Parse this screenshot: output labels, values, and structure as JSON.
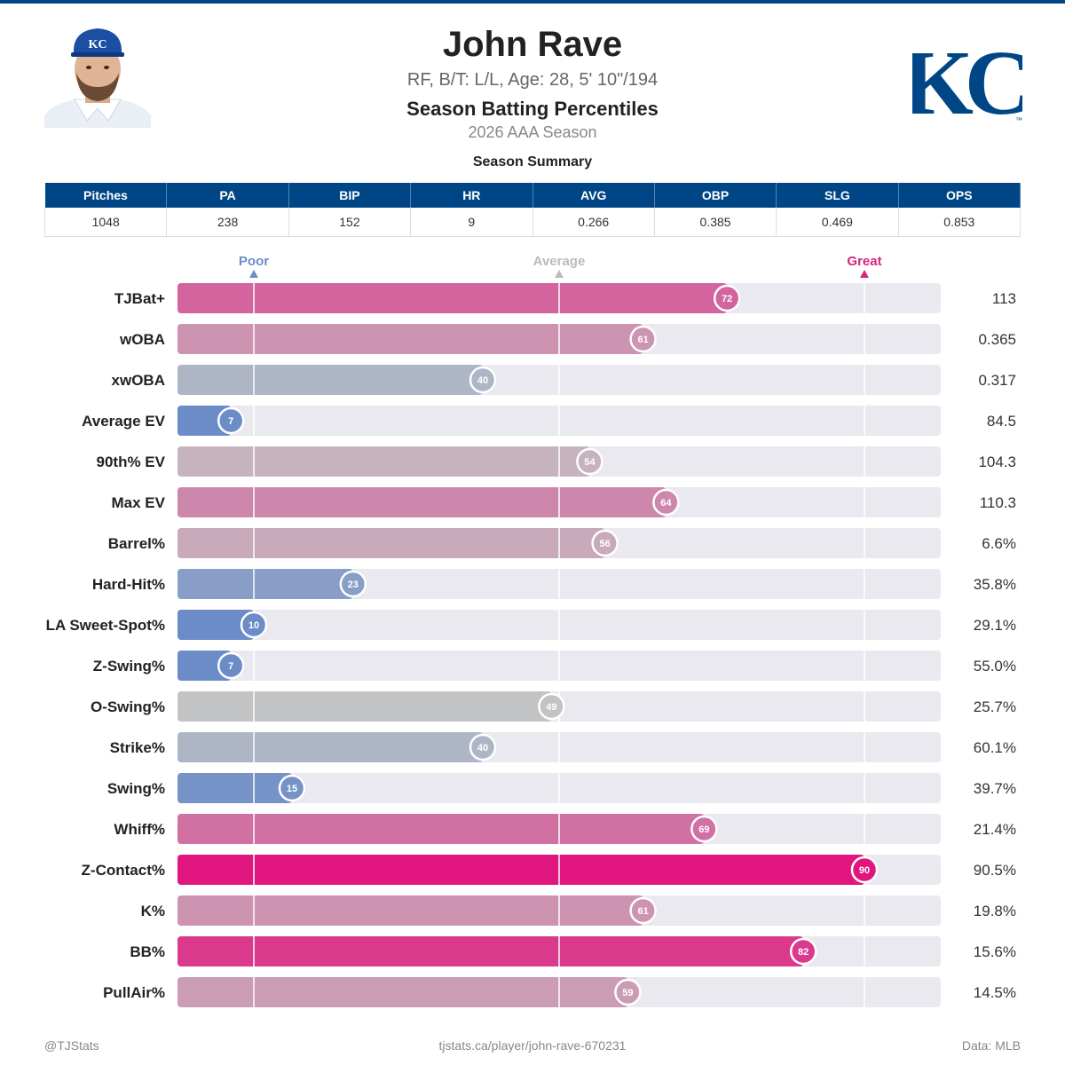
{
  "header": {
    "name": "John Rave",
    "info": "RF, B/T: L/L, Age: 28, 5' 10\"/194",
    "title": "Season Batting Percentiles",
    "season": "2026 AAA Season"
  },
  "logo": {
    "text": "KC",
    "color": "#004687"
  },
  "summary": {
    "title": "Season Summary",
    "columns": [
      "Pitches",
      "PA",
      "BIP",
      "HR",
      "AVG",
      "OBP",
      "SLG",
      "OPS"
    ],
    "values": [
      "1048",
      "238",
      "152",
      "9",
      "0.266",
      "0.385",
      "0.469",
      "0.853"
    ]
  },
  "chart_data": {
    "type": "bar",
    "orientation": "horizontal",
    "xlim": [
      0,
      100
    ],
    "reference_markers": [
      {
        "label": "Poor",
        "value": 10,
        "color": "#6b8cc7"
      },
      {
        "label": "Average",
        "value": 50,
        "color": "#bbbbbb"
      },
      {
        "label": "Great",
        "value": 90,
        "color": "#d6257a"
      }
    ],
    "categories": [
      "TJBat+",
      "wOBA",
      "xwOBA",
      "Average EV",
      "90th% EV",
      "Max EV",
      "Barrel%",
      "Hard-Hit%",
      "LA Sweet-Spot%",
      "Z-Swing%",
      "O-Swing%",
      "Strike%",
      "Swing%",
      "Whiff%",
      "Z-Contact%",
      "K%",
      "BB%",
      "PullAir%"
    ],
    "percentiles": [
      72,
      61,
      40,
      7,
      54,
      64,
      56,
      23,
      10,
      7,
      49,
      40,
      15,
      69,
      90,
      61,
      82,
      59
    ],
    "stat_values": [
      "113",
      "0.365",
      "0.317",
      "84.5",
      "104.3",
      "110.3",
      "6.6%",
      "35.8%",
      "29.1%",
      "55.0%",
      "25.7%",
      "60.1%",
      "39.7%",
      "21.4%",
      "90.5%",
      "19.8%",
      "15.6%",
      "14.5%"
    ],
    "colors": {
      "poor": "#6b8cc7",
      "average": "#c4c4c4",
      "great": "#e0167e",
      "track": "#e9e9ef"
    }
  },
  "footer": {
    "left": "@TJStats",
    "center": "tjstats.ca/player/john-rave-670231",
    "right": "Data: MLB"
  }
}
